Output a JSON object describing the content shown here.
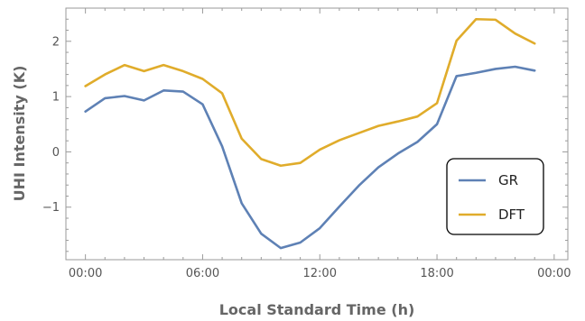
{
  "chart_data": {
    "type": "line",
    "xlabel": "Local Standard Time (h)",
    "ylabel": "UHI Intensity (K)",
    "x_ticks": [
      "00:00",
      "06:00",
      "12:00",
      "18:00",
      "00:00"
    ],
    "y_ticks": [
      "−1",
      "0",
      "1",
      "2"
    ],
    "xlim": [
      -1,
      24.7
    ],
    "ylim": [
      -1.95,
      2.6
    ],
    "grid": false,
    "legend_position": "bottom-right",
    "x": [
      0,
      1,
      2,
      3,
      4,
      5,
      6,
      7,
      8,
      9,
      10,
      11,
      12,
      13,
      14,
      15,
      16,
      17,
      18,
      19,
      20,
      21,
      22,
      23
    ],
    "series": [
      {
        "name": "GR",
        "color": "#5e81b5",
        "values": [
          0.73,
          0.97,
          1.01,
          0.93,
          1.11,
          1.09,
          0.86,
          0.1,
          -0.93,
          -1.48,
          -1.74,
          -1.64,
          -1.38,
          -0.99,
          -0.61,
          -0.28,
          -0.03,
          0.18,
          0.5,
          1.37,
          1.43,
          1.5,
          1.54,
          1.47
        ]
      },
      {
        "name": "DFT",
        "color": "#e0ac2b",
        "values": [
          1.19,
          1.4,
          1.57,
          1.46,
          1.57,
          1.46,
          1.32,
          1.06,
          0.24,
          -0.13,
          -0.25,
          -0.2,
          0.04,
          0.21,
          0.34,
          0.47,
          0.55,
          0.64,
          0.88,
          2.01,
          2.4,
          2.39,
          2.14,
          1.96
        ]
      }
    ]
  }
}
